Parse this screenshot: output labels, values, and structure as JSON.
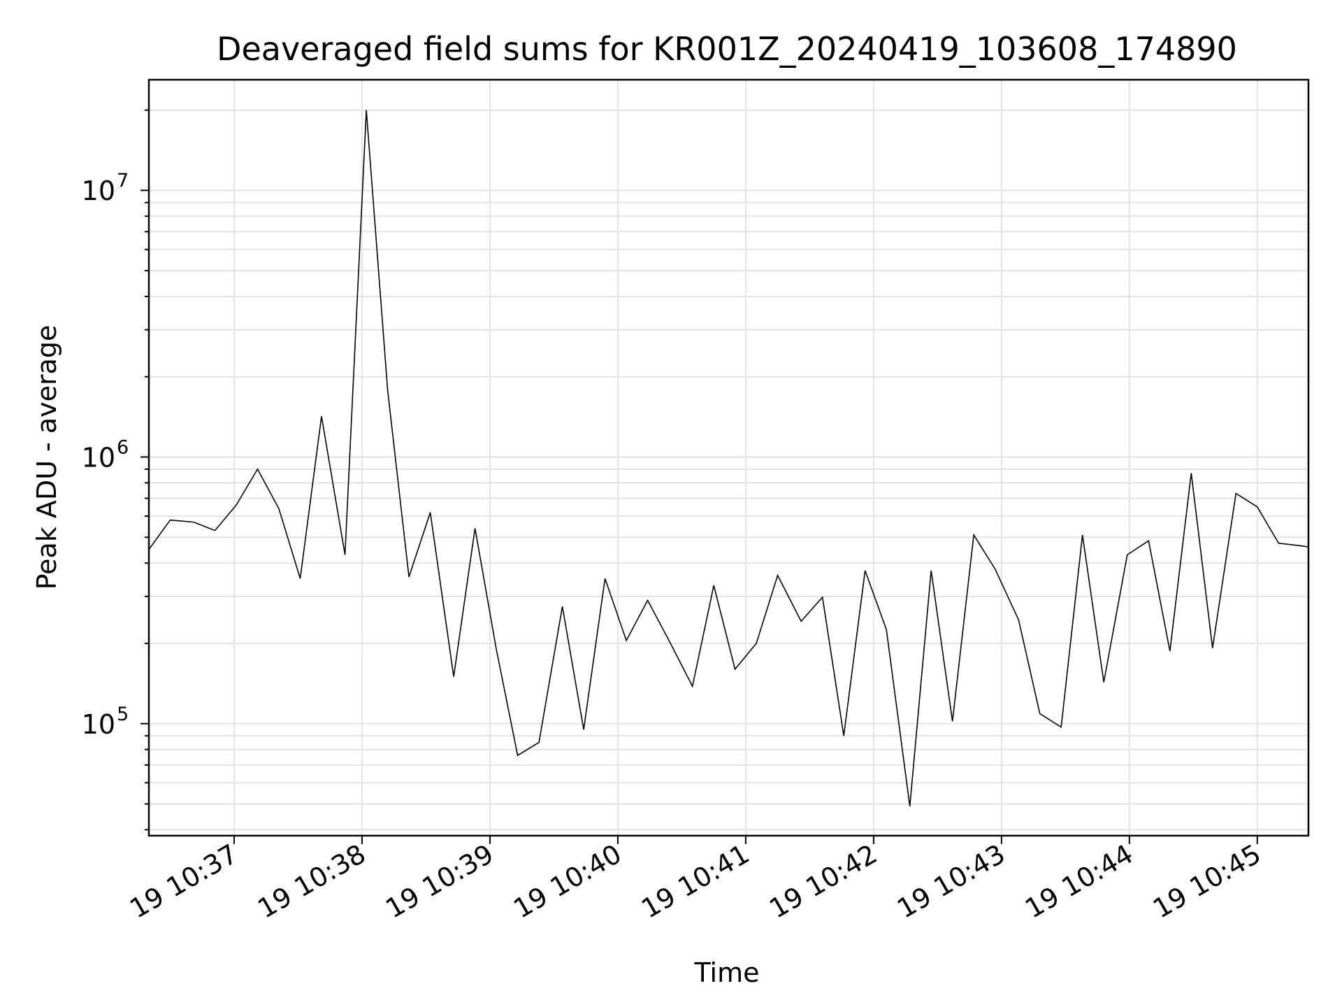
{
  "chart_data": {
    "type": "line",
    "title": "Deaveraged field sums for KR001Z_20240419_103608_174890",
    "xlabel": "Time",
    "ylabel": "Peak ADU - average",
    "x_axis": {
      "kind": "time",
      "range": [
        "2024-04-19 10:36:20",
        "2024-04-19 10:45:24"
      ],
      "tick_labels": [
        "19 10:37",
        "19 10:38",
        "19 10:39",
        "19 10:40",
        "19 10:41",
        "19 10:42",
        "19 10:43",
        "19 10:44",
        "19 10:45"
      ],
      "tick_times": [
        "2024-04-19 10:37:00",
        "2024-04-19 10:38:00",
        "2024-04-19 10:39:00",
        "2024-04-19 10:40:00",
        "2024-04-19 10:41:00",
        "2024-04-19 10:42:00",
        "2024-04-19 10:43:00",
        "2024-04-19 10:44:00",
        "2024-04-19 10:45:00"
      ]
    },
    "y_axis": {
      "scale": "log",
      "range": [
        38000,
        26000000
      ],
      "tick_labels": [
        {
          "base": "10",
          "exp": "5",
          "value": 100000
        },
        {
          "base": "10",
          "exp": "6",
          "value": 1000000
        },
        {
          "base": "10",
          "exp": "7",
          "value": 10000000
        }
      ]
    },
    "grid": true,
    "line_color": "#000000",
    "series": [
      {
        "x": [
          "2024-04-19 10:36:20",
          "2024-04-19 10:36:30",
          "2024-04-19 10:36:41",
          "2024-04-19 10:36:51",
          "2024-04-19 10:37:01",
          "2024-04-19 10:37:11",
          "2024-04-19 10:37:21",
          "2024-04-19 10:37:31",
          "2024-04-19 10:37:41",
          "2024-04-19 10:37:52",
          "2024-04-19 10:38:02",
          "2024-04-19 10:38:12",
          "2024-04-19 10:38:22",
          "2024-04-19 10:38:32",
          "2024-04-19 10:38:43",
          "2024-04-19 10:38:53",
          "2024-04-19 10:39:03",
          "2024-04-19 10:39:13",
          "2024-04-19 10:39:23",
          "2024-04-19 10:39:34",
          "2024-04-19 10:39:44",
          "2024-04-19 10:39:54",
          "2024-04-19 10:40:04",
          "2024-04-19 10:40:14",
          "2024-04-19 10:40:24",
          "2024-04-19 10:40:35",
          "2024-04-19 10:40:45",
          "2024-04-19 10:40:55",
          "2024-04-19 10:41:05",
          "2024-04-19 10:41:15",
          "2024-04-19 10:41:26",
          "2024-04-19 10:41:36",
          "2024-04-19 10:41:46",
          "2024-04-19 10:41:56",
          "2024-04-19 10:42:06",
          "2024-04-19 10:42:17",
          "2024-04-19 10:42:27",
          "2024-04-19 10:42:37",
          "2024-04-19 10:42:47",
          "2024-04-19 10:42:57",
          "2024-04-19 10:43:08",
          "2024-04-19 10:43:18",
          "2024-04-19 10:43:28",
          "2024-04-19 10:43:38",
          "2024-04-19 10:43:48",
          "2024-04-19 10:43:59",
          "2024-04-19 10:44:09",
          "2024-04-19 10:44:19",
          "2024-04-19 10:44:29",
          "2024-04-19 10:44:39",
          "2024-04-19 10:44:50",
          "2024-04-19 10:45:00",
          "2024-04-19 10:45:10",
          "2024-04-19 10:45:20",
          "2024-04-19 10:45:24"
        ],
        "values": [
          450000,
          580000,
          570000,
          530000,
          660000,
          900000,
          640000,
          350000,
          1420000,
          430000,
          20000000,
          1780000,
          355000,
          620000,
          150000,
          540000,
          190000,
          76000,
          85000,
          275000,
          95000,
          350000,
          205000,
          290000,
          205000,
          138000,
          330000,
          160000,
          200000,
          360000,
          242000,
          298000,
          90000,
          375000,
          225000,
          49000,
          375000,
          102000,
          510000,
          380000,
          245000,
          109000,
          97000,
          510000,
          143000,
          430000,
          485000,
          187000,
          870000,
          192000,
          730000,
          650000,
          475000,
          465000,
          460000
        ]
      }
    ]
  }
}
